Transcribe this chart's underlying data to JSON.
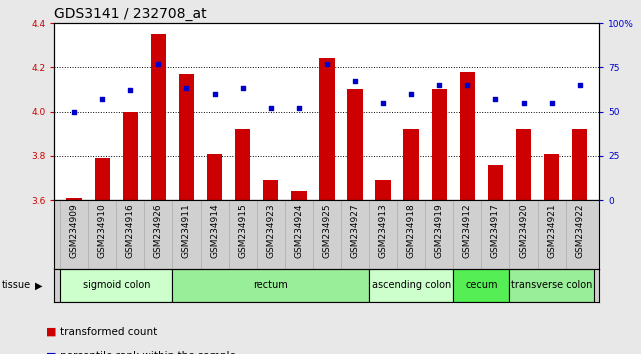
{
  "title": "GDS3141 / 232708_at",
  "samples": [
    "GSM234909",
    "GSM234910",
    "GSM234916",
    "GSM234926",
    "GSM234911",
    "GSM234914",
    "GSM234915",
    "GSM234923",
    "GSM234924",
    "GSM234925",
    "GSM234927",
    "GSM234913",
    "GSM234918",
    "GSM234919",
    "GSM234912",
    "GSM234917",
    "GSM234920",
    "GSM234921",
    "GSM234922"
  ],
  "bar_values": [
    3.61,
    3.79,
    4.0,
    4.35,
    4.17,
    3.81,
    3.92,
    3.69,
    3.64,
    4.24,
    4.1,
    3.69,
    3.92,
    4.1,
    4.18,
    3.76,
    3.92,
    3.81,
    3.92
  ],
  "dot_values": [
    50,
    57,
    62,
    77,
    63,
    60,
    63,
    52,
    52,
    77,
    67,
    55,
    60,
    65,
    65,
    57,
    55,
    55,
    65
  ],
  "ylim_left": [
    3.6,
    4.4
  ],
  "ylim_right": [
    0,
    100
  ],
  "yticks_left": [
    3.6,
    3.8,
    4.0,
    4.2,
    4.4
  ],
  "yticks_right": [
    0,
    25,
    50,
    75,
    100
  ],
  "ytick_labels_right": [
    "0",
    "25",
    "50",
    "75",
    "100%"
  ],
  "bar_color": "#cc0000",
  "dot_color": "#0000cc",
  "tissue_groups": [
    {
      "label": "sigmoid colon",
      "start": 0,
      "end": 3,
      "color": "#ccffcc"
    },
    {
      "label": "rectum",
      "start": 4,
      "end": 10,
      "color": "#99ee99"
    },
    {
      "label": "ascending colon",
      "start": 11,
      "end": 13,
      "color": "#ccffcc"
    },
    {
      "label": "cecum",
      "start": 14,
      "end": 15,
      "color": "#55ee55"
    },
    {
      "label": "transverse colon",
      "start": 16,
      "end": 18,
      "color": "#99ee99"
    }
  ],
  "bar_width": 0.55,
  "tick_fontsize": 6.5,
  "tissue_fontsize": 7,
  "title_fontsize": 10,
  "fig_bg": "#e8e8e8",
  "plot_bg": "#ffffff",
  "xtick_bg": "#d0d0d0",
  "grid_yticks": [
    3.8,
    4.0,
    4.2
  ]
}
